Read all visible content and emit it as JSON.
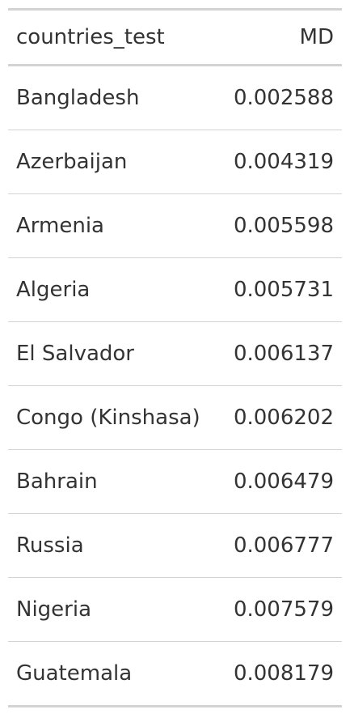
{
  "table": {
    "columns": [
      "countries_test",
      "MD"
    ],
    "rows": [
      {
        "country": "Bangladesh",
        "md": "0.002588"
      },
      {
        "country": "Azerbaijan",
        "md": "0.004319"
      },
      {
        "country": "Armenia",
        "md": "0.005598"
      },
      {
        "country": "Algeria",
        "md": "0.005731"
      },
      {
        "country": "El Salvador",
        "md": "0.006137"
      },
      {
        "country": "Congo (Kinshasa)",
        "md": "0.006202"
      },
      {
        "country": "Bahrain",
        "md": "0.006479"
      },
      {
        "country": "Russia",
        "md": "0.006777"
      },
      {
        "country": "Nigeria",
        "md": "0.007579"
      },
      {
        "country": "Guatemala",
        "md": "0.008179"
      }
    ]
  },
  "colors": {
    "text": "#333333",
    "border": "#d3d3d3",
    "background": "#ffffff"
  }
}
